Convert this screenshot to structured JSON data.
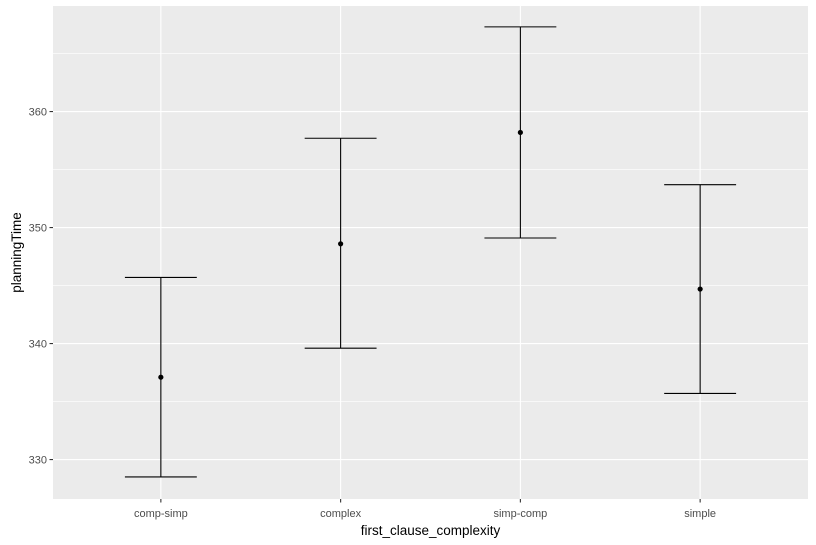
{
  "chart_data": {
    "type": "scatter",
    "subtype": "errorbar",
    "title": "",
    "xlabel": "first_clause_complexity",
    "ylabel": "planningTime",
    "categories": [
      "comp-simp",
      "complex",
      "simp-comp",
      "simple"
    ],
    "series": [
      {
        "values": [
          337.1,
          348.6,
          358.2,
          344.7
        ],
        "lower": [
          328.5,
          339.6,
          349.1,
          335.7
        ],
        "upper": [
          345.7,
          357.7,
          367.3,
          353.7
        ]
      }
    ],
    "yticks": [
      330,
      340,
      350,
      360
    ],
    "ylim": [
      326.6,
      369.1
    ],
    "grid": true,
    "legend": "none",
    "colors": {
      "panel": "#ebebeb",
      "grid_major": "#ffffff",
      "marks": "#000000"
    }
  }
}
